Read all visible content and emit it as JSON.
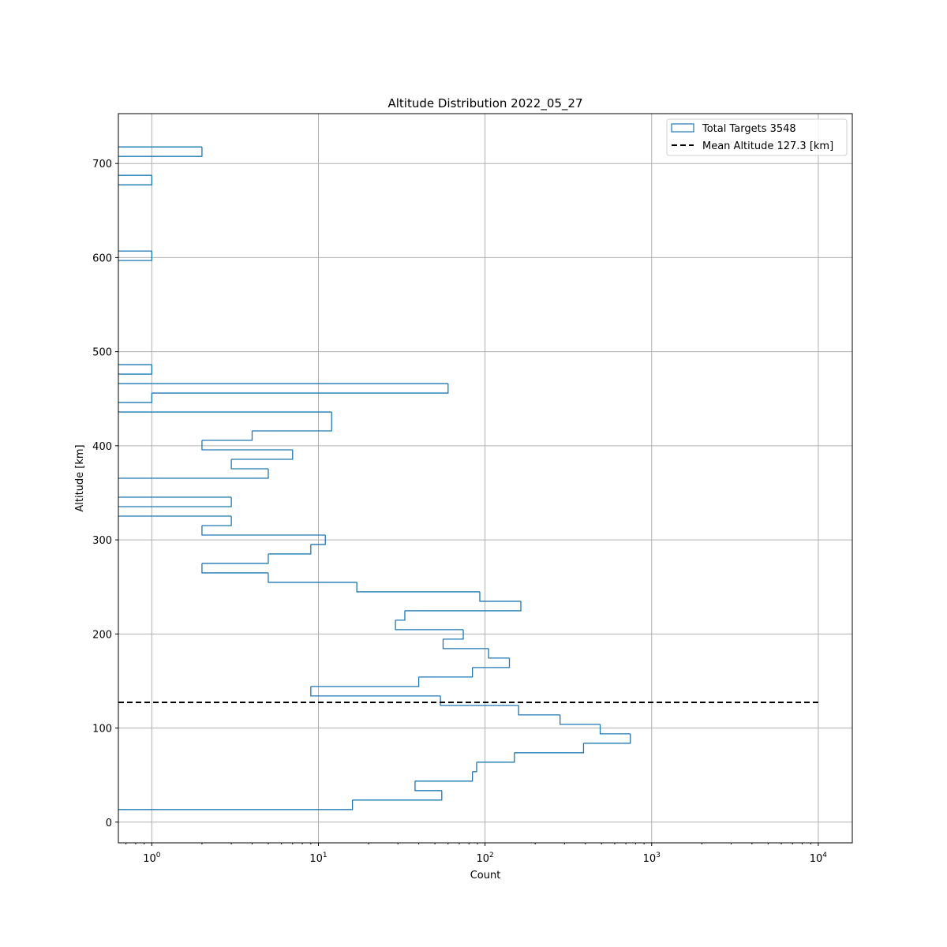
{
  "chart_data": {
    "type": "bar",
    "orientation": "horizontal",
    "histtype": "step",
    "title": "Altitude Distribution 2022_05_27",
    "xlabel": "Count",
    "ylabel": "Altitude [km]",
    "xscale": "log",
    "xlim": [
      0.63,
      16000
    ],
    "ylim": [
      -22,
      753
    ],
    "grid": true,
    "bin_start_km": 13.4,
    "bin_width_km": 10.06,
    "counts": [
      16,
      55,
      38,
      84,
      89,
      150,
      390,
      745,
      491,
      282,
      159,
      54,
      9,
      40,
      84,
      140,
      105,
      56,
      74,
      29,
      33,
      164,
      93,
      17,
      5,
      2,
      5,
      9,
      11,
      2,
      3,
      0,
      3,
      0,
      0,
      5,
      3,
      7,
      2,
      4,
      12,
      12,
      0,
      1,
      60,
      0,
      1,
      0,
      0,
      0,
      0,
      0,
      0,
      0,
      0,
      0,
      0,
      0,
      1,
      0,
      0,
      0,
      0,
      0,
      0,
      0,
      1,
      0,
      0,
      2
    ],
    "mean_altitude": 127.3,
    "mean_line_x_range": [
      0.63,
      10000
    ],
    "y_ticks": [
      "0",
      "100",
      "200",
      "300",
      "400",
      "500",
      "600",
      "700"
    ],
    "x_ticks": [
      {
        "base": "10",
        "exp": "0"
      },
      {
        "base": "10",
        "exp": "1"
      },
      {
        "base": "10",
        "exp": "2"
      },
      {
        "base": "10",
        "exp": "3"
      },
      {
        "base": "10",
        "exp": "4"
      }
    ],
    "legend": {
      "placement": "top-right",
      "entries": [
        "Total Targets 3548",
        "Mean Altitude 127.3 [km]"
      ]
    },
    "colors": {
      "hist": "#1f77b4",
      "mean": "#000000"
    }
  }
}
